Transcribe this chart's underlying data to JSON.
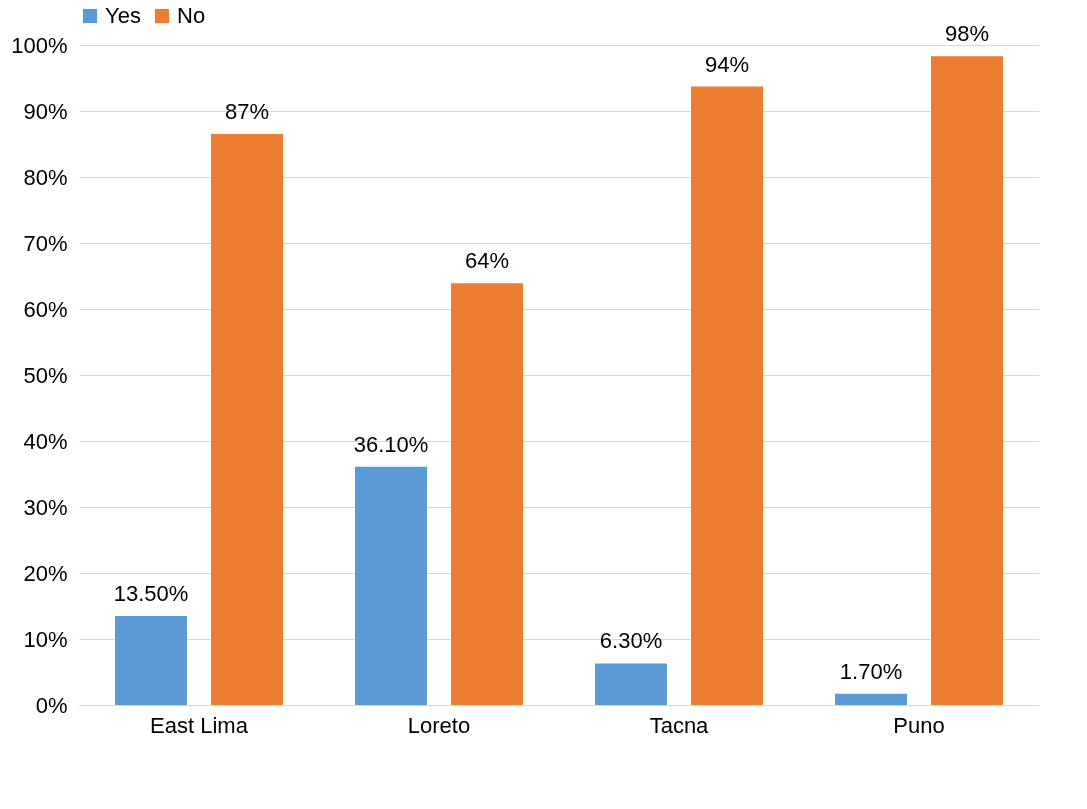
{
  "chart_data": {
    "type": "bar",
    "categories": [
      "East Lima",
      "Loreto",
      "Tacna",
      "Puno"
    ],
    "series": [
      {
        "name": "Yes",
        "color": "#5b9bd5",
        "values": [
          13.5,
          36.1,
          6.3,
          1.7
        ],
        "value_labels": [
          "13.50%",
          "36.10%",
          "6.30%",
          "1.70%"
        ]
      },
      {
        "name": "No",
        "color": "#ed7d31",
        "values": [
          86.5,
          63.9,
          93.7,
          98.3
        ],
        "value_labels": [
          "87%",
          "64%",
          "94%",
          "98%"
        ]
      }
    ],
    "ylim": [
      0,
      100
    ],
    "yticks": [
      {
        "value": 0,
        "label": "0%"
      },
      {
        "value": 10,
        "label": "10%"
      },
      {
        "value": 20,
        "label": "20%"
      },
      {
        "value": 30,
        "label": "30%"
      },
      {
        "value": 40,
        "label": "40%"
      },
      {
        "value": 50,
        "label": "50%"
      },
      {
        "value": 60,
        "label": "60%"
      },
      {
        "value": 70,
        "label": "70%"
      },
      {
        "value": 80,
        "label": "80%"
      },
      {
        "value": 90,
        "label": "90%"
      },
      {
        "value": 100,
        "label": "100%"
      }
    ],
    "grid": "y",
    "legend": "top"
  }
}
